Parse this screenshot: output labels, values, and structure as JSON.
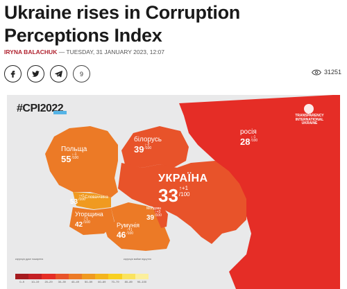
{
  "article": {
    "title": "Ukraine rises in Corruption Perceptions Index",
    "author": "IRYNA BALACHUK",
    "separator": " — ",
    "date": "TUESDAY, 31 JANUARY 2023, 12:07",
    "comments_count": "9",
    "views_count": "31251"
  },
  "icons": {
    "share": [
      "facebook-icon",
      "twitter-icon",
      "telegram-icon"
    ],
    "views": "eye-icon"
  },
  "map": {
    "hashtag": "#CPI2022",
    "logo_text": "TRANSPARENCY INTERNATIONAL",
    "logo_sub": "UKRAINE",
    "countries": [
      {
        "id": "poland",
        "name": "Польща",
        "score": "55",
        "change_dir": "↓",
        "change": "-1",
        "denom": "/100"
      },
      {
        "id": "belarus",
        "name": "білорусь",
        "score": "39",
        "change_dir": "↓",
        "change": "-2",
        "denom": "/100"
      },
      {
        "id": "russia",
        "name": "росія",
        "score": "28",
        "change_dir": "↓",
        "change": "-1",
        "denom": "/100"
      },
      {
        "id": "ukraine",
        "name": "УКРАЇНА",
        "score": "33",
        "change_dir": "↑",
        "change": "+1",
        "denom": "/100"
      },
      {
        "id": "slovakia",
        "name": "Словаччина",
        "score": "53",
        "change_dir": "↑",
        "change": "+1",
        "denom": "/100"
      },
      {
        "id": "hungary",
        "name": "Угорщина",
        "score": "42",
        "change_dir": "↓",
        "change": "-1",
        "denom": "/100"
      },
      {
        "id": "romania",
        "name": "Румунія",
        "score": "46",
        "change_dir": "↑",
        "change": "+1",
        "denom": "/100"
      },
      {
        "id": "moldova",
        "name": "Молдова",
        "score": "39",
        "change_dir": "↑",
        "change": "+3",
        "denom": "/100"
      }
    ],
    "legend": {
      "left_title": "корупція дуже поширена",
      "right_title": "корупція майже відсутня",
      "labels": [
        "0–9",
        "10–19",
        "20–29",
        "30–39",
        "40–49",
        "50–59",
        "60–69",
        "70–79",
        "80–89",
        "90–100"
      ],
      "colors": [
        "#a51b1f",
        "#c41f24",
        "#e52d26",
        "#e8532a",
        "#ec7a26",
        "#f09a20",
        "#f4b51d",
        "#f8d021",
        "#fae35e",
        "#fbef9c"
      ]
    }
  }
}
